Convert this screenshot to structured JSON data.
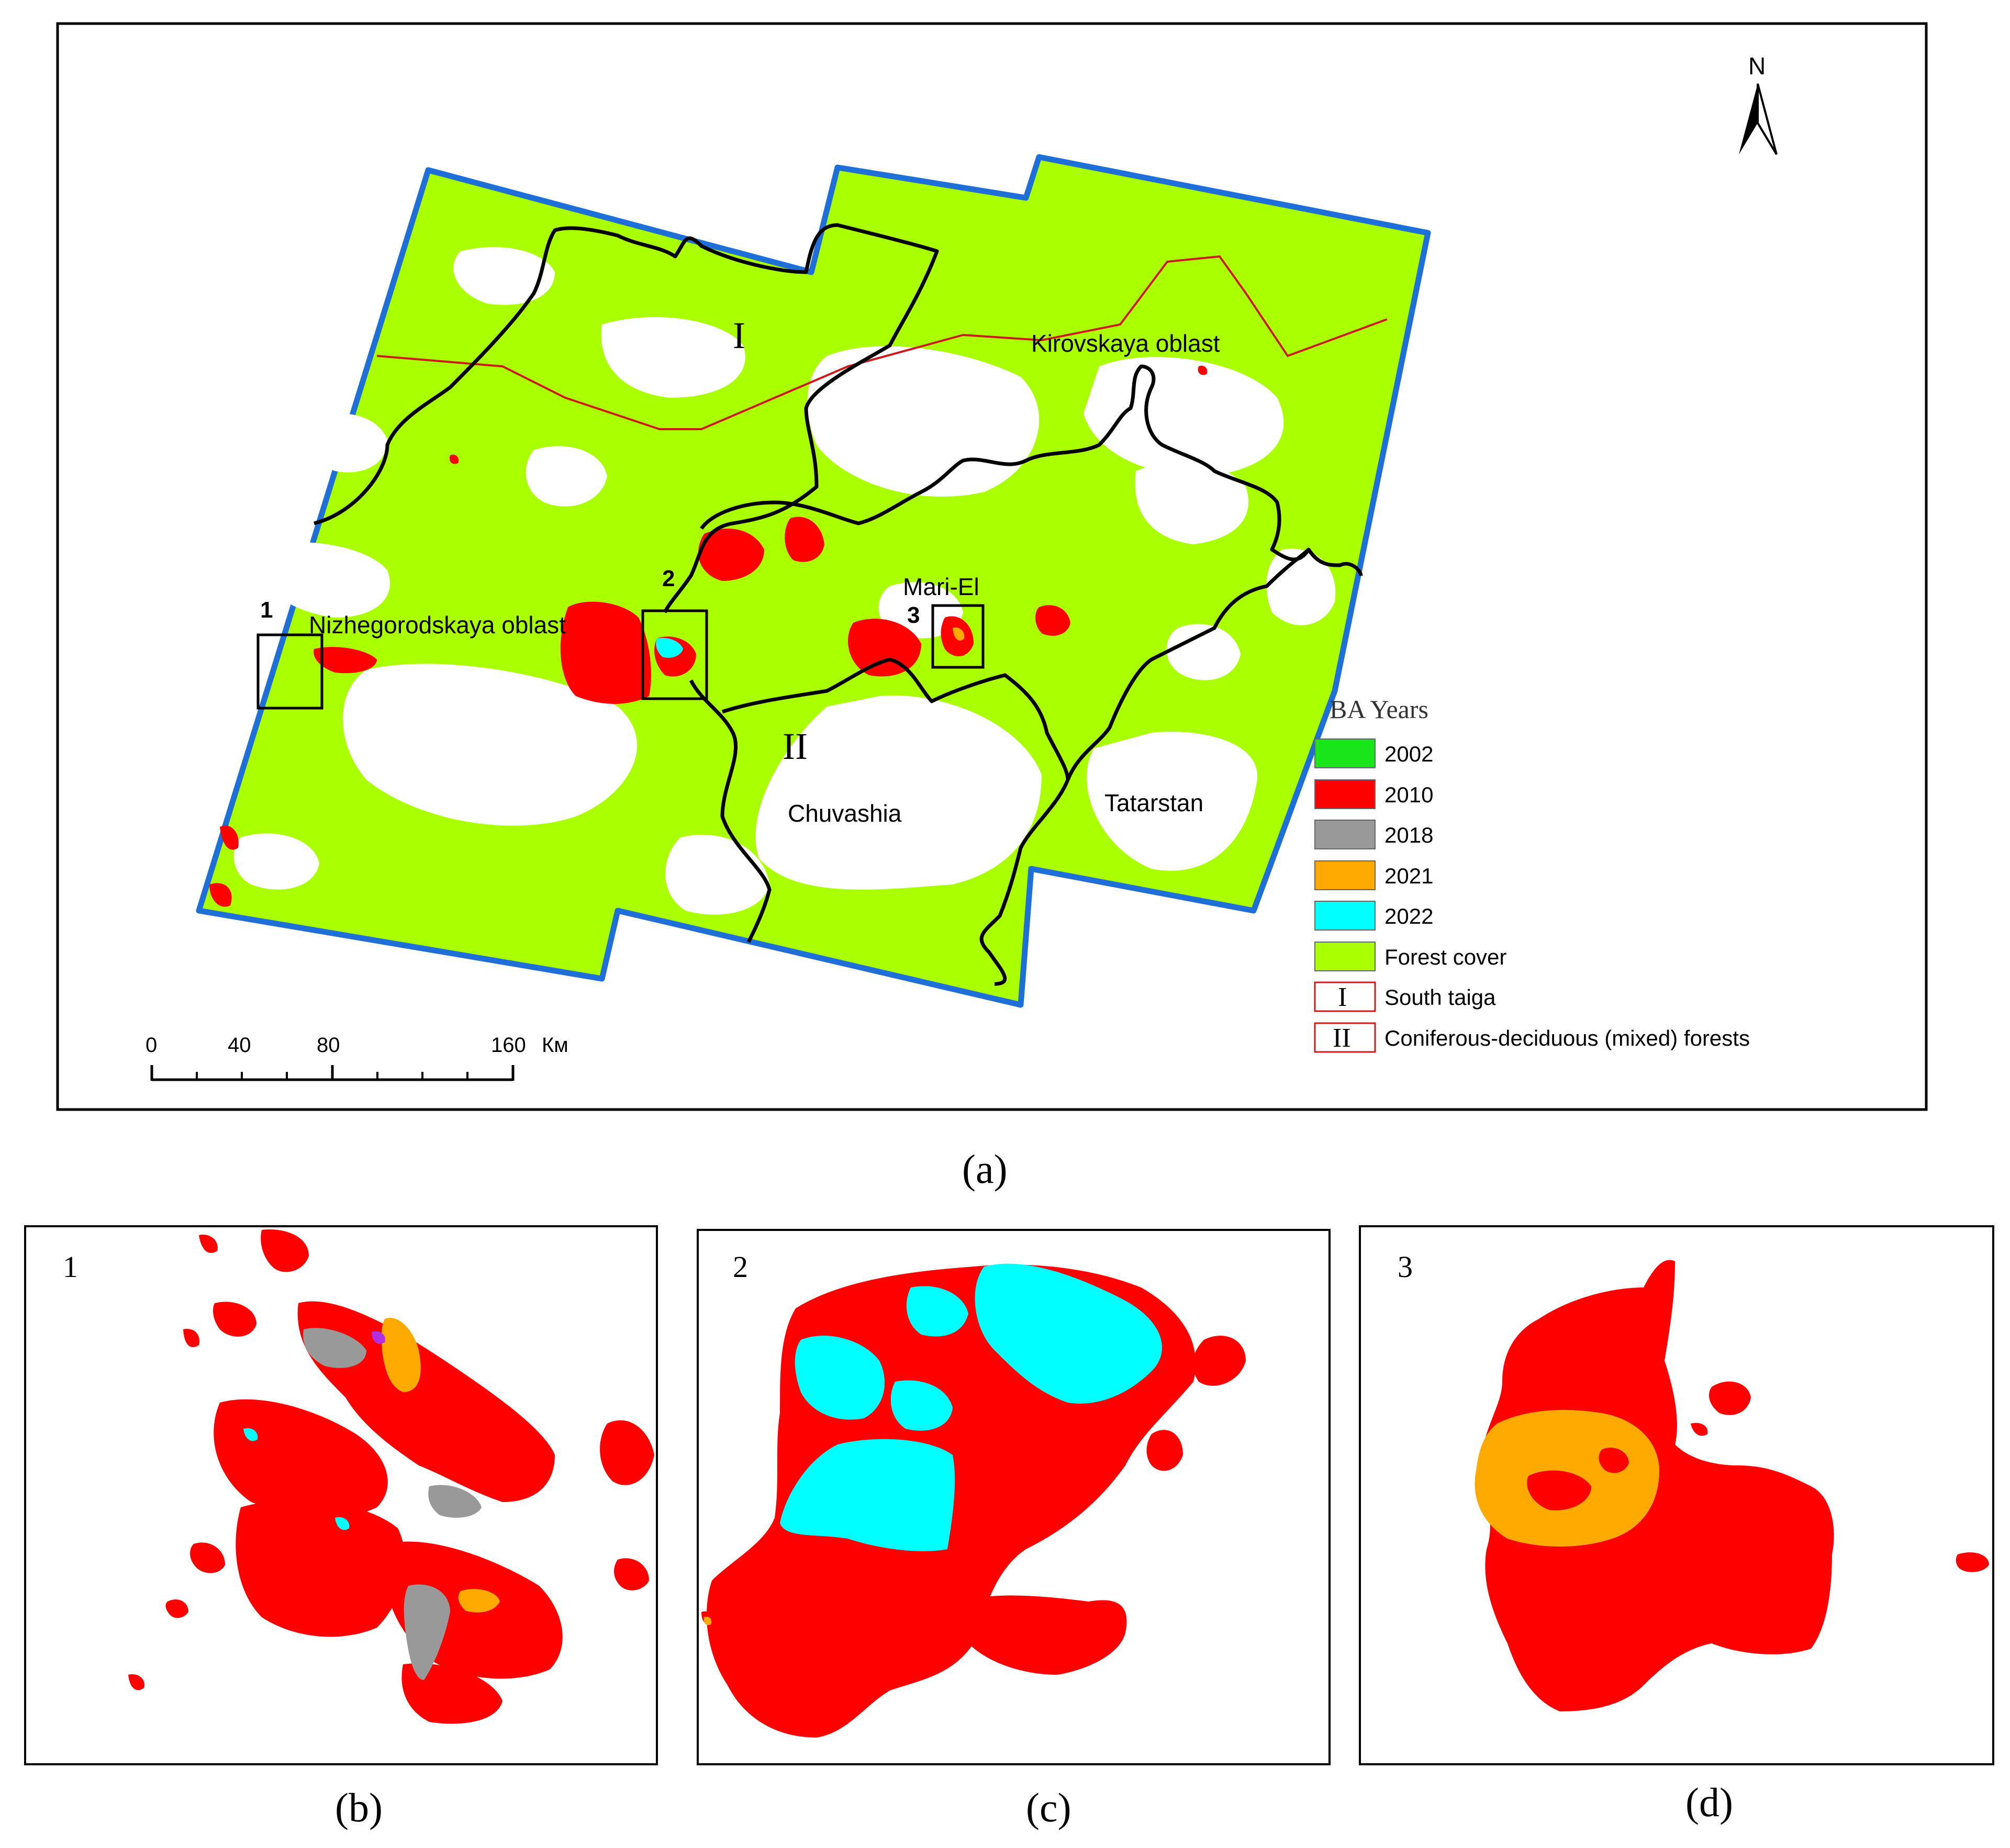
{
  "panel_a": {
    "caption": "(a)",
    "north_label": "N",
    "zone_labels": {
      "south_taiga": "I",
      "mixed_forests": "II"
    },
    "region_labels": {
      "kirovskaya": "Kirovskaya oblast",
      "nizhegorodskaya": "Nizhegorodskaya oblast",
      "mari_el": "Mari-El",
      "chuvashia": "Chuvashia",
      "tatarstan": "Tatarstan"
    },
    "inset_box_labels": [
      "1",
      "2",
      "3"
    ],
    "scale_bar": {
      "ticks": [
        "0",
        "40",
        "80",
        "160"
      ],
      "unit": "Км"
    },
    "legend": {
      "title": "BA Years",
      "items": [
        {
          "label": "2002",
          "color": "#19e619"
        },
        {
          "label": "2010",
          "color": "#ff0000"
        },
        {
          "label": "2018",
          "color": "#999999"
        },
        {
          "label": "2021",
          "color": "#ffaa00"
        },
        {
          "label": "2022",
          "color": "#00ffff"
        },
        {
          "label": "Forest cover",
          "color": "#aaff00"
        },
        {
          "label": "South taiga",
          "symbol": "I"
        },
        {
          "label": "Coniferous-deciduous (mixed) forests",
          "symbol": "II"
        }
      ]
    }
  },
  "panel_b": {
    "caption": "(b)",
    "number": "1"
  },
  "panel_c": {
    "caption": "(c)",
    "number": "2"
  },
  "panel_d": {
    "caption": "(d)",
    "number": "3"
  },
  "colors": {
    "forest": "#aaff00",
    "burn_2010": "#ff0000",
    "burn_2018": "#999999",
    "burn_2021": "#ffaa00",
    "burn_2022": "#00ffff",
    "burn_2002": "#19e619",
    "study_boundary": "#1f6fd8",
    "zone_boundary": "#000000",
    "oblast_boundary": "#cc1a1a"
  }
}
